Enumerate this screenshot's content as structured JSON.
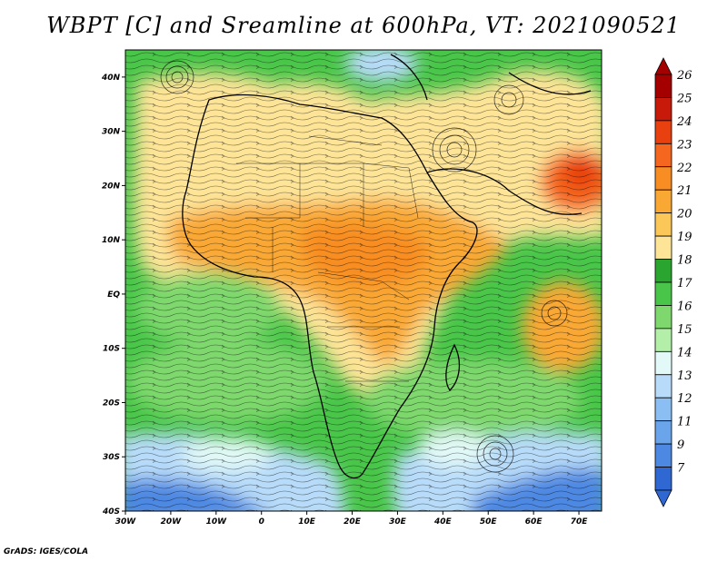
{
  "title": "WBPT [C] and Sreamline at 600hPa, VT: 2021090521",
  "credit": "GrADS: IGES/COLA",
  "map": {
    "lon_ticks": [
      "30W",
      "20W",
      "10W",
      "0",
      "10E",
      "20E",
      "30E",
      "40E",
      "50E",
      "60E",
      "70E"
    ],
    "lat_ticks": [
      "40N",
      "30N",
      "20N",
      "10N",
      "EQ",
      "10S",
      "20S",
      "30S",
      "40S"
    ],
    "lon_range": [
      -30,
      75
    ],
    "lat_range": [
      -40,
      45
    ]
  },
  "colorbar": {
    "labels": [
      "26",
      "25",
      "24",
      "23",
      "22",
      "21",
      "20",
      "19",
      "18",
      "17",
      "16",
      "15",
      "14",
      "13",
      "12",
      "11",
      "9",
      "7"
    ],
    "colors": [
      "#a50000",
      "#c81a0a",
      "#e8400f",
      "#f5661e",
      "#f88d24",
      "#f9a834",
      "#fbc758",
      "#fde497",
      "#2aa52f",
      "#49c649",
      "#7ed86d",
      "#b3efa9",
      "#e2f9f7",
      "#b7dbf9",
      "#8bbff3",
      "#6aa5ec",
      "#4d88e2",
      "#2f68d2"
    ]
  }
}
